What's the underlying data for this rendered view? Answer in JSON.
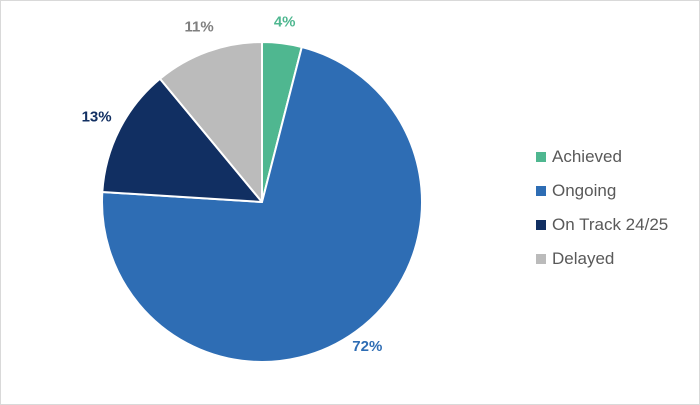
{
  "chart_data": {
    "type": "pie",
    "title": "",
    "categories": [
      "Achieved",
      "Ongoing",
      "On Track 24/25",
      "Delayed"
    ],
    "values": [
      4,
      72,
      13,
      11
    ],
    "labels": [
      "4%",
      "72%",
      "13%",
      "11%"
    ],
    "colors": [
      "#4fb790",
      "#2e6db4",
      "#112f62",
      "#bbbbbb"
    ],
    "label_colors": [
      "#4fb790",
      "#2e6db4",
      "#112f62",
      "#7f7f7f"
    ],
    "legend_position": "right",
    "start_angle": "12 o'clock, clockwise"
  }
}
